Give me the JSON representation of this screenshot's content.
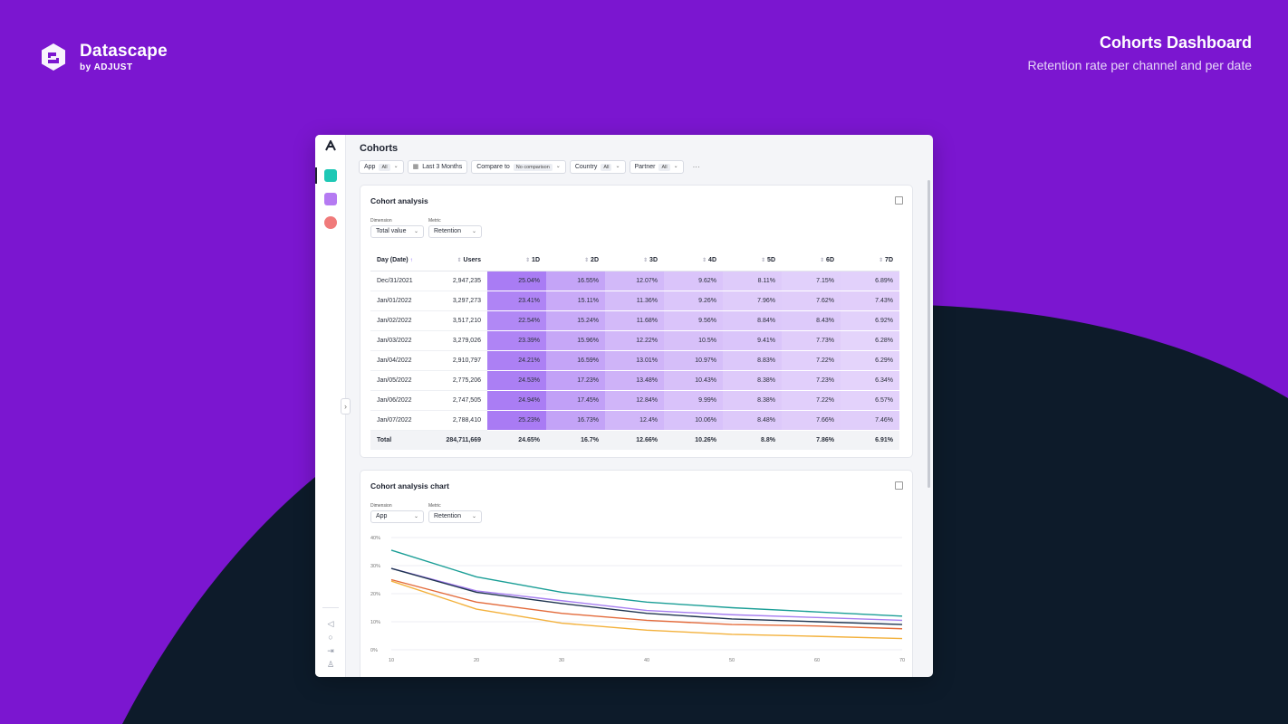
{
  "brand": {
    "name": "Datascape",
    "sub": "by ADJUST"
  },
  "header": {
    "title": "Cohorts Dashboard",
    "subtitle": "Retention rate per channel and per date"
  },
  "colors": {
    "background": "#7b16d0",
    "dark_shape": "#0d1b2a",
    "accent": "#7b52f5"
  },
  "app": {
    "page_title": "Cohorts",
    "filters": [
      {
        "label": "App",
        "tag": "All"
      },
      {
        "label": "Last 3 Months",
        "tag": ""
      },
      {
        "label": "Compare to",
        "tag": "No comparison"
      },
      {
        "label": "Country",
        "tag": "All"
      },
      {
        "label": "Partner",
        "tag": "All"
      }
    ],
    "more": "···"
  },
  "cohort_table": {
    "title": "Cohort analysis",
    "dimension_label": "Dimension",
    "dimension_value": "Total value",
    "metric_label": "Metric",
    "metric_value": "Retention",
    "columns": [
      "Day (Date)",
      "Users",
      "1D",
      "2D",
      "3D",
      "4D",
      "5D",
      "6D",
      "7D"
    ],
    "rows": [
      {
        "date": "Dec/31/2021",
        "users": "2,947,235",
        "values": [
          "25.04%",
          "16.55%",
          "12.07%",
          "9.62%",
          "8.11%",
          "7.15%",
          "6.89%"
        ]
      },
      {
        "date": "Jan/01/2022",
        "users": "3,297,273",
        "values": [
          "23.41%",
          "15.11%",
          "11.36%",
          "9.26%",
          "7.96%",
          "7.62%",
          "7.43%"
        ]
      },
      {
        "date": "Jan/02/2022",
        "users": "3,517,210",
        "values": [
          "22.54%",
          "15.24%",
          "11.68%",
          "9.56%",
          "8.84%",
          "8.43%",
          "6.92%"
        ]
      },
      {
        "date": "Jan/03/2022",
        "users": "3,279,026",
        "values": [
          "23.39%",
          "15.96%",
          "12.22%",
          "10.5%",
          "9.41%",
          "7.73%",
          "6.28%"
        ]
      },
      {
        "date": "Jan/04/2022",
        "users": "2,910,797",
        "values": [
          "24.21%",
          "16.59%",
          "13.01%",
          "10.97%",
          "8.83%",
          "7.22%",
          "6.29%"
        ]
      },
      {
        "date": "Jan/05/2022",
        "users": "2,775,206",
        "values": [
          "24.53%",
          "17.23%",
          "13.48%",
          "10.43%",
          "8.38%",
          "7.23%",
          "6.34%"
        ]
      },
      {
        "date": "Jan/06/2022",
        "users": "2,747,505",
        "values": [
          "24.94%",
          "17.45%",
          "12.84%",
          "9.99%",
          "8.38%",
          "7.22%",
          "6.57%"
        ]
      },
      {
        "date": "Jan/07/2022",
        "users": "2,788,410",
        "values": [
          "25.23%",
          "16.73%",
          "12.4%",
          "10.06%",
          "8.48%",
          "7.66%",
          "7.46%"
        ]
      }
    ],
    "total": {
      "label": "Total",
      "users": "284,711,669",
      "values": [
        "24.65%",
        "16.7%",
        "12.66%",
        "10.26%",
        "8.8%",
        "7.86%",
        "6.91%"
      ]
    }
  },
  "cohort_chart": {
    "title": "Cohort analysis chart",
    "dimension_label": "Dimension",
    "dimension_value": "App",
    "metric_label": "Metric",
    "metric_value": "Retention"
  },
  "chart_data": {
    "type": "line",
    "x": [
      10,
      20,
      30,
      40,
      50,
      60,
      70
    ],
    "ylim": [
      0,
      40
    ],
    "yticks": [
      "0%",
      "10%",
      "20%",
      "30%",
      "40%"
    ],
    "xticks": [
      "10",
      "20",
      "30",
      "40",
      "50",
      "60",
      "70"
    ],
    "grid": true,
    "series": [
      {
        "color": "#1a9e96",
        "values": [
          35.5,
          26,
          20.5,
          17,
          15,
          13.5,
          12
        ]
      },
      {
        "color": "#a67ef0",
        "values": [
          29,
          21,
          17.5,
          14,
          12.5,
          11.5,
          10.5
        ]
      },
      {
        "color": "#1f3550",
        "values": [
          29,
          20.5,
          16.5,
          13,
          11,
          10,
          9
        ]
      },
      {
        "color": "#e36a3a",
        "values": [
          25,
          17,
          13,
          10.5,
          9,
          8.5,
          7.5
        ]
      },
      {
        "color": "#f3b13c",
        "values": [
          24.5,
          14.5,
          9.5,
          7,
          5.5,
          4.8,
          4
        ]
      }
    ]
  }
}
